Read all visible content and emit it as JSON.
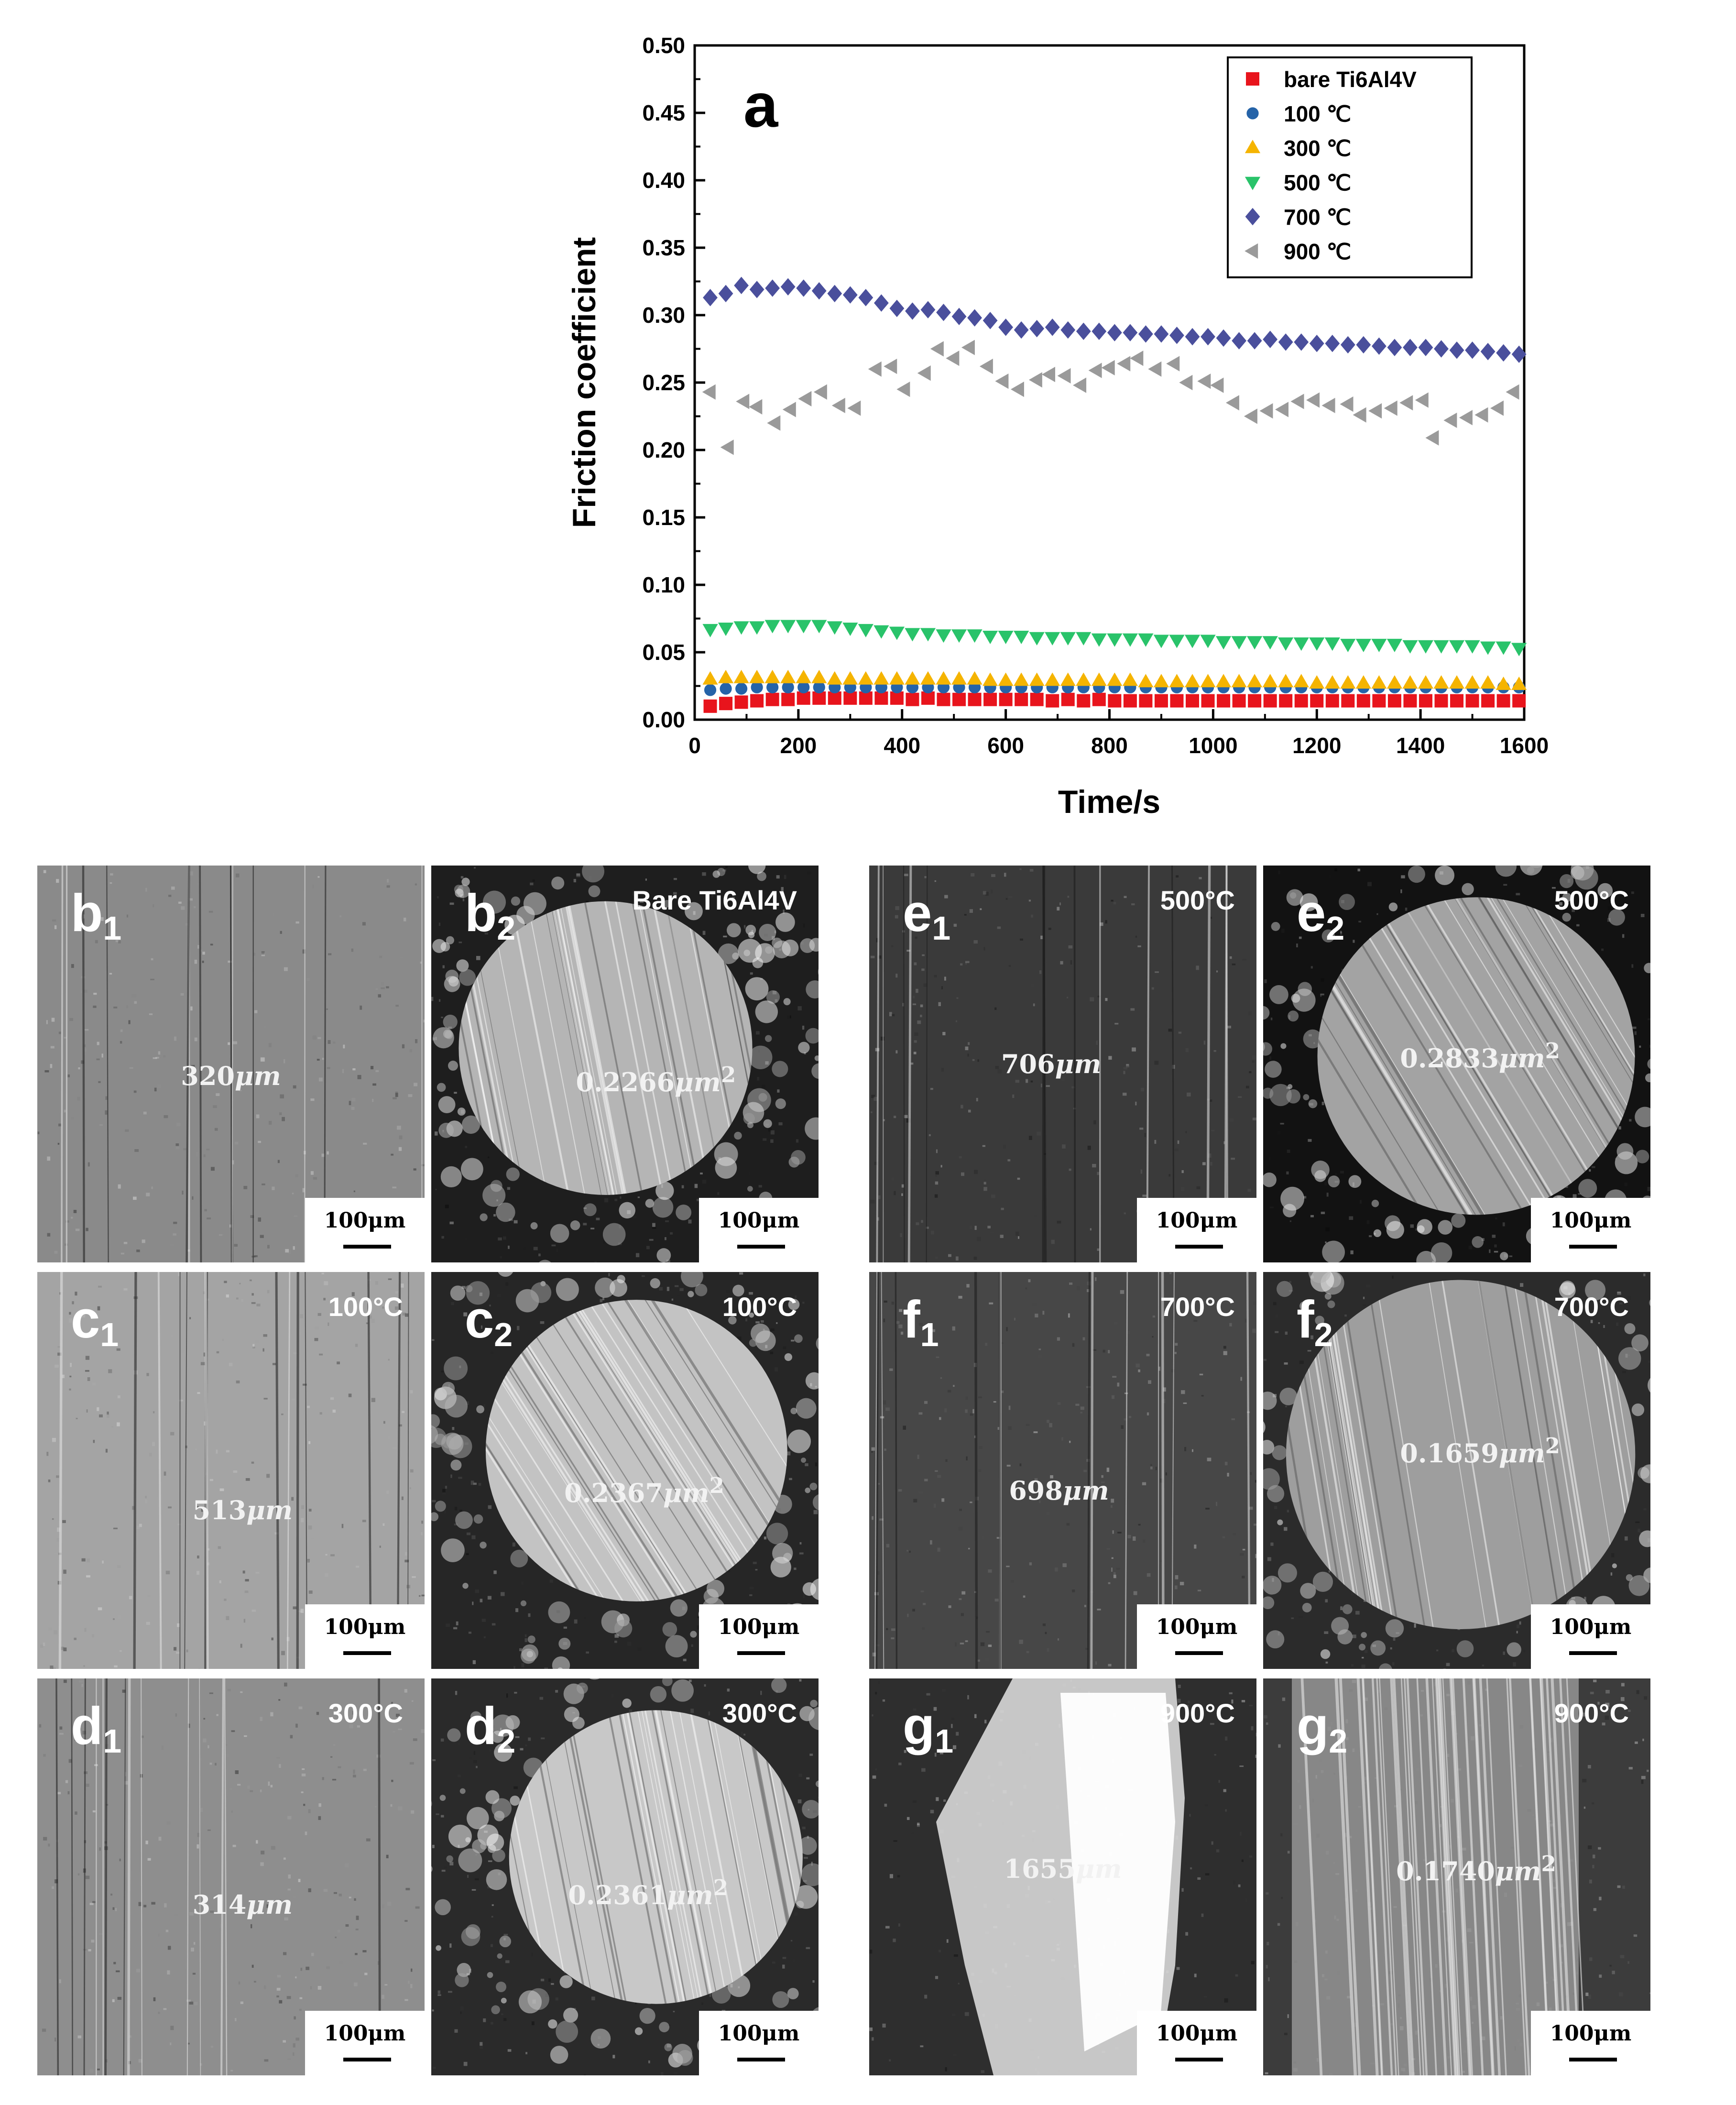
{
  "chart_data": {
    "type": "scatter",
    "panel_label": "a",
    "xlabel": "Time/s",
    "ylabel": "Friction coefficient",
    "xlim": [
      0,
      1600
    ],
    "ylim": [
      0,
      0.5
    ],
    "xticks": [
      "0",
      "200",
      "400",
      "600",
      "800",
      "1000",
      "1200",
      "1400",
      "1600"
    ],
    "yticks": [
      "0.00",
      "0.05",
      "0.10",
      "0.15",
      "0.20",
      "0.25",
      "0.30",
      "0.35",
      "0.40",
      "0.45",
      "0.50"
    ],
    "legend_position": "top-right",
    "series": [
      {
        "name": "bare Ti6Al4V",
        "marker": "square",
        "color": "#e8141c",
        "x": [
          30,
          60,
          90,
          120,
          150,
          180,
          210,
          240,
          270,
          300,
          330,
          360,
          390,
          420,
          450,
          480,
          510,
          540,
          570,
          600,
          630,
          660,
          690,
          720,
          750,
          780,
          810,
          840,
          870,
          900,
          930,
          960,
          990,
          1020,
          1050,
          1080,
          1110,
          1140,
          1170,
          1200,
          1230,
          1260,
          1290,
          1320,
          1350,
          1380,
          1410,
          1440,
          1470,
          1500,
          1530,
          1560,
          1590
        ],
        "y": [
          0.01,
          0.012,
          0.013,
          0.014,
          0.015,
          0.015,
          0.016,
          0.016,
          0.016,
          0.016,
          0.016,
          0.016,
          0.016,
          0.015,
          0.016,
          0.015,
          0.015,
          0.015,
          0.015,
          0.015,
          0.015,
          0.015,
          0.014,
          0.015,
          0.014,
          0.015,
          0.014,
          0.014,
          0.014,
          0.014,
          0.014,
          0.014,
          0.014,
          0.014,
          0.014,
          0.014,
          0.014,
          0.014,
          0.014,
          0.014,
          0.014,
          0.014,
          0.014,
          0.014,
          0.014,
          0.014,
          0.014,
          0.014,
          0.014,
          0.014,
          0.014,
          0.014,
          0.014
        ]
      },
      {
        "name": "100 ℃",
        "marker": "circle",
        "color": "#2563a8",
        "x": [
          30,
          60,
          90,
          120,
          150,
          180,
          210,
          240,
          270,
          300,
          330,
          360,
          390,
          420,
          450,
          480,
          510,
          540,
          570,
          600,
          630,
          660,
          690,
          720,
          750,
          780,
          810,
          840,
          870,
          900,
          930,
          960,
          990,
          1020,
          1050,
          1080,
          1110,
          1140,
          1170,
          1200,
          1230,
          1260,
          1290,
          1320,
          1350,
          1380,
          1410,
          1440,
          1470,
          1500,
          1530,
          1560,
          1590
        ],
        "y": [
          0.022,
          0.023,
          0.023,
          0.024,
          0.024,
          0.024,
          0.024,
          0.024,
          0.024,
          0.024,
          0.024,
          0.024,
          0.024,
          0.024,
          0.024,
          0.024,
          0.024,
          0.024,
          0.024,
          0.024,
          0.024,
          0.024,
          0.024,
          0.024,
          0.024,
          0.024,
          0.024,
          0.024,
          0.024,
          0.024,
          0.024,
          0.024,
          0.024,
          0.024,
          0.024,
          0.024,
          0.024,
          0.024,
          0.024,
          0.024,
          0.024,
          0.024,
          0.024,
          0.024,
          0.024,
          0.024,
          0.024,
          0.024,
          0.024,
          0.024,
          0.024,
          0.024,
          0.024
        ]
      },
      {
        "name": "300 ℃",
        "marker": "triangle-up",
        "color": "#f5b400",
        "x": [
          30,
          60,
          90,
          120,
          150,
          180,
          210,
          240,
          270,
          300,
          330,
          360,
          390,
          420,
          450,
          480,
          510,
          540,
          570,
          600,
          630,
          660,
          690,
          720,
          750,
          780,
          810,
          840,
          870,
          900,
          930,
          960,
          990,
          1020,
          1050,
          1080,
          1110,
          1140,
          1170,
          1200,
          1230,
          1260,
          1290,
          1320,
          1350,
          1380,
          1410,
          1440,
          1470,
          1500,
          1530,
          1560,
          1590
        ],
        "y": [
          0.03,
          0.031,
          0.031,
          0.031,
          0.031,
          0.031,
          0.031,
          0.031,
          0.03,
          0.03,
          0.03,
          0.03,
          0.03,
          0.03,
          0.03,
          0.03,
          0.03,
          0.03,
          0.029,
          0.029,
          0.029,
          0.029,
          0.029,
          0.029,
          0.029,
          0.029,
          0.029,
          0.029,
          0.028,
          0.028,
          0.028,
          0.028,
          0.028,
          0.028,
          0.028,
          0.028,
          0.028,
          0.028,
          0.028,
          0.027,
          0.027,
          0.027,
          0.027,
          0.027,
          0.027,
          0.027,
          0.027,
          0.027,
          0.027,
          0.027,
          0.027,
          0.026,
          0.026
        ]
      },
      {
        "name": "500 ℃",
        "marker": "triangle-down",
        "color": "#29c36a",
        "x": [
          30,
          60,
          90,
          120,
          150,
          180,
          210,
          240,
          270,
          300,
          330,
          360,
          390,
          420,
          450,
          480,
          510,
          540,
          570,
          600,
          630,
          660,
          690,
          720,
          750,
          780,
          810,
          840,
          870,
          900,
          930,
          960,
          990,
          1020,
          1050,
          1080,
          1110,
          1140,
          1170,
          1200,
          1230,
          1260,
          1290,
          1320,
          1350,
          1380,
          1410,
          1440,
          1470,
          1500,
          1530,
          1560,
          1590
        ],
        "y": [
          0.067,
          0.068,
          0.069,
          0.069,
          0.07,
          0.07,
          0.07,
          0.07,
          0.069,
          0.068,
          0.067,
          0.066,
          0.065,
          0.064,
          0.064,
          0.063,
          0.063,
          0.063,
          0.062,
          0.062,
          0.062,
          0.061,
          0.061,
          0.061,
          0.061,
          0.06,
          0.06,
          0.06,
          0.06,
          0.059,
          0.059,
          0.059,
          0.059,
          0.058,
          0.058,
          0.058,
          0.058,
          0.057,
          0.057,
          0.057,
          0.057,
          0.056,
          0.056,
          0.056,
          0.056,
          0.055,
          0.055,
          0.055,
          0.055,
          0.055,
          0.054,
          0.054,
          0.053
        ]
      },
      {
        "name": "700 ℃",
        "marker": "diamond",
        "color": "#4a4f9c",
        "x": [
          30,
          60,
          90,
          120,
          150,
          180,
          210,
          240,
          270,
          300,
          330,
          360,
          390,
          420,
          450,
          480,
          510,
          540,
          570,
          600,
          630,
          660,
          690,
          720,
          750,
          780,
          810,
          840,
          870,
          900,
          930,
          960,
          990,
          1020,
          1050,
          1080,
          1110,
          1140,
          1170,
          1200,
          1230,
          1260,
          1290,
          1320,
          1350,
          1380,
          1410,
          1440,
          1470,
          1500,
          1530,
          1560,
          1590
        ],
        "y": [
          0.313,
          0.316,
          0.322,
          0.319,
          0.32,
          0.321,
          0.32,
          0.318,
          0.316,
          0.315,
          0.313,
          0.309,
          0.305,
          0.303,
          0.304,
          0.302,
          0.299,
          0.298,
          0.296,
          0.291,
          0.289,
          0.29,
          0.291,
          0.289,
          0.288,
          0.288,
          0.287,
          0.287,
          0.286,
          0.286,
          0.285,
          0.284,
          0.284,
          0.283,
          0.281,
          0.281,
          0.282,
          0.28,
          0.28,
          0.279,
          0.279,
          0.278,
          0.278,
          0.277,
          0.276,
          0.276,
          0.276,
          0.275,
          0.274,
          0.274,
          0.273,
          0.272,
          0.271
        ]
      },
      {
        "name": "900 ℃",
        "marker": "triangle-left",
        "color": "#9a9a9a",
        "x": [
          30,
          65,
          95,
          120,
          155,
          185,
          215,
          245,
          280,
          310,
          350,
          380,
          405,
          445,
          470,
          500,
          530,
          565,
          595,
          625,
          660,
          685,
          715,
          745,
          775,
          800,
          830,
          855,
          890,
          925,
          950,
          985,
          1010,
          1040,
          1075,
          1105,
          1135,
          1165,
          1195,
          1225,
          1260,
          1285,
          1315,
          1345,
          1375,
          1405,
          1425,
          1460,
          1490,
          1520,
          1550,
          1580
        ],
        "y": [
          0.243,
          0.202,
          0.236,
          0.232,
          0.22,
          0.23,
          0.238,
          0.243,
          0.233,
          0.231,
          0.26,
          0.262,
          0.245,
          0.257,
          0.275,
          0.268,
          0.276,
          0.262,
          0.251,
          0.245,
          0.252,
          0.256,
          0.255,
          0.248,
          0.259,
          0.261,
          0.264,
          0.268,
          0.26,
          0.264,
          0.25,
          0.251,
          0.248,
          0.235,
          0.225,
          0.229,
          0.23,
          0.236,
          0.237,
          0.233,
          0.234,
          0.226,
          0.229,
          0.231,
          0.235,
          0.237,
          0.209,
          0.222,
          0.224,
          0.226,
          0.231,
          0.243
        ]
      }
    ]
  },
  "panels": {
    "b1": {
      "letter": "b",
      "sub": "1",
      "temp": "",
      "value": "320",
      "unit": "μm",
      "sup": "",
      "scale": "100μm"
    },
    "b2": {
      "letter": "b",
      "sub": "2",
      "temp": "Bare Ti6Al4V",
      "value": "0.2266",
      "unit": "μm",
      "sup": "2",
      "scale": "100μm"
    },
    "c1": {
      "letter": "c",
      "sub": "1",
      "temp": "100°C",
      "value": "513",
      "unit": "μm",
      "sup": "",
      "scale": "100μm"
    },
    "c2": {
      "letter": "c",
      "sub": "2",
      "temp": "100°C",
      "value": "0.2367",
      "unit": "μm",
      "sup": "2",
      "scale": "100μm"
    },
    "d1": {
      "letter": "d",
      "sub": "1",
      "temp": "300°C",
      "value": "314",
      "unit": "μm",
      "sup": "",
      "scale": "100μm"
    },
    "d2": {
      "letter": "d",
      "sub": "2",
      "temp": "300°C",
      "value": "0.2361",
      "unit": "μm",
      "sup": "2",
      "scale": "100μm"
    },
    "e1": {
      "letter": "e",
      "sub": "1",
      "temp": "500°C",
      "value": "706",
      "unit": "μm",
      "sup": "",
      "scale": "100μm"
    },
    "e2": {
      "letter": "e",
      "sub": "2",
      "temp": "500°C",
      "value": "0.2833",
      "unit": "μm",
      "sup": "2",
      "scale": "100μm"
    },
    "f1": {
      "letter": "f",
      "sub": "1",
      "temp": "700°C",
      "value": "698",
      "unit": "μm",
      "sup": "",
      "scale": "100μm"
    },
    "f2": {
      "letter": "f",
      "sub": "2",
      "temp": "700°C",
      "value": "0.1659",
      "unit": "μm",
      "sup": "2",
      "scale": "100μm"
    },
    "g1": {
      "letter": "g",
      "sub": "1",
      "temp": "900°C",
      "value": "1655",
      "unit": "μm",
      "sup": "",
      "scale": "100μm"
    },
    "g2": {
      "letter": "g",
      "sub": "2",
      "temp": "900°C",
      "value": "0.1740",
      "unit": "μm",
      "sup": "2",
      "scale": "100μm"
    }
  }
}
